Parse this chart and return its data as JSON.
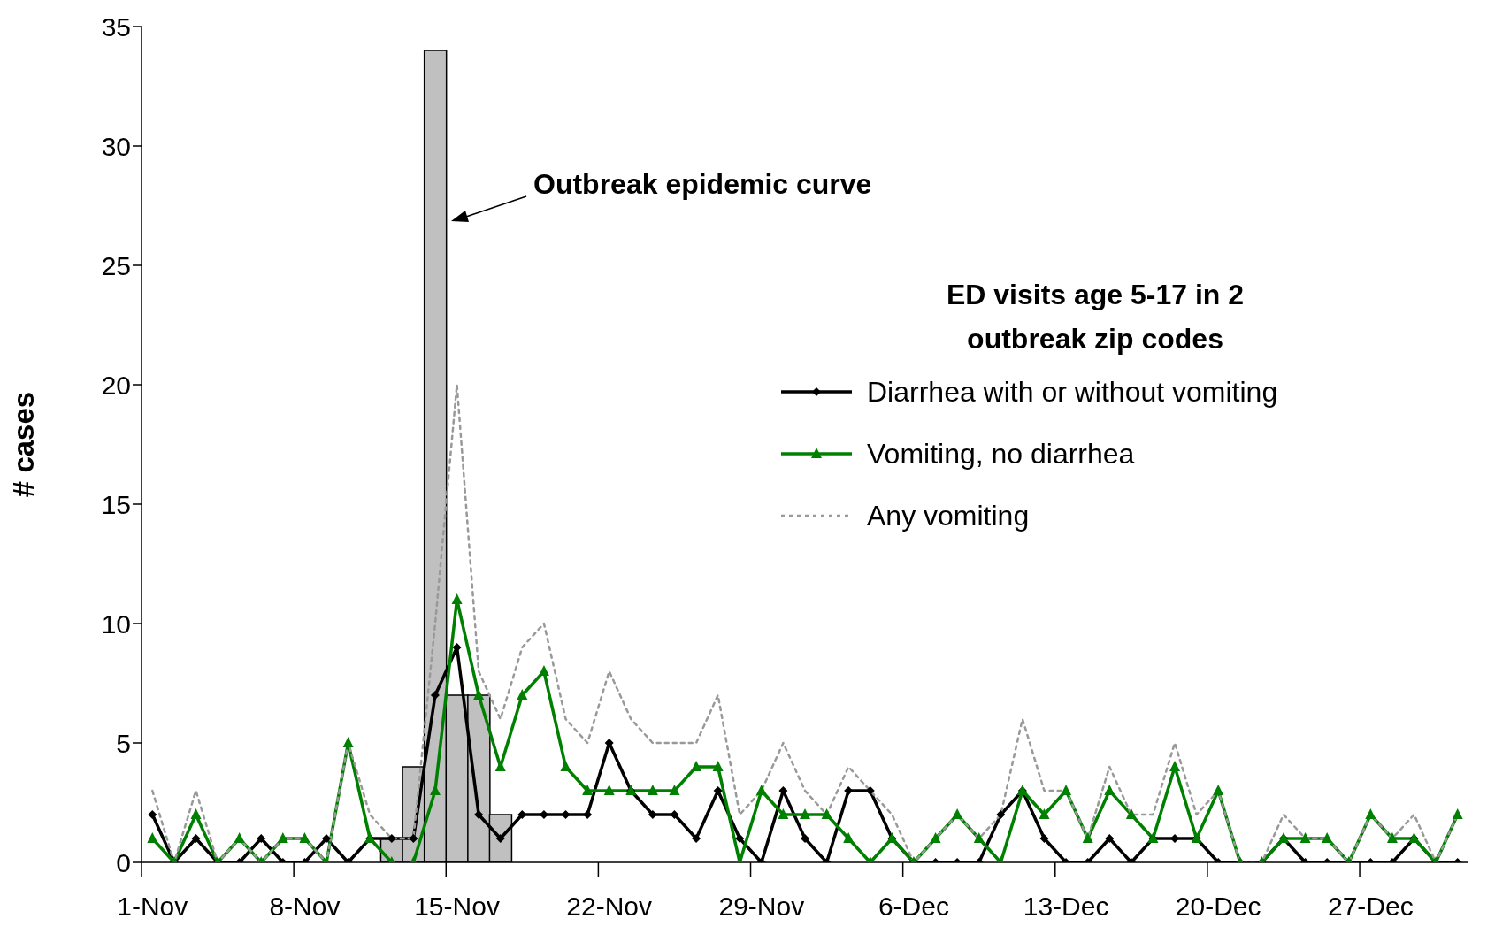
{
  "chart_data": {
    "type": "line",
    "ylabel": "# cases",
    "legend_title": "ED visits age 5-17 in 2 outbreak zip codes",
    "legend": "right",
    "annotations": [
      "Outbreak epidemic curve"
    ],
    "categories": [
      "1-Nov",
      null,
      null,
      null,
      null,
      null,
      null,
      "8-Nov",
      null,
      null,
      null,
      null,
      null,
      null,
      "15-Nov",
      null,
      null,
      null,
      null,
      null,
      null,
      "22-Nov",
      null,
      null,
      null,
      null,
      null,
      null,
      "29-Nov",
      null,
      null,
      null,
      null,
      null,
      null,
      "6-Dec",
      null,
      null,
      null,
      null,
      null,
      null,
      "13-Dec",
      null,
      null,
      null,
      null,
      null,
      null,
      "20-Dec",
      null,
      null,
      null,
      null,
      null,
      null,
      "27-Dec",
      null,
      null,
      null,
      null
    ],
    "ylim": [
      0,
      35
    ],
    "yticks": [
      0,
      5,
      10,
      15,
      20,
      25,
      30,
      35
    ],
    "series": [
      {
        "type": "bar",
        "color": "#c0c0c0",
        "values": [
          null,
          null,
          null,
          null,
          null,
          null,
          null,
          null,
          null,
          null,
          null,
          1,
          4,
          34,
          7,
          7,
          2,
          null,
          null,
          null,
          null,
          null,
          null,
          null,
          null,
          null,
          null,
          null,
          null,
          null,
          null,
          null,
          null,
          null,
          null,
          null,
          null,
          null,
          null,
          null,
          null,
          null,
          null,
          null,
          null,
          null,
          null,
          null,
          null,
          null,
          null,
          null,
          null,
          null,
          null,
          null,
          null,
          null,
          null,
          null,
          null
        ]
      },
      {
        "name": "Diarrhea with or without vomiting",
        "color": "#000000",
        "marker": "diamond",
        "line_style": "solid",
        "values": [
          2,
          0,
          1,
          0,
          0,
          1,
          0,
          0,
          1,
          0,
          1,
          1,
          1,
          7,
          9,
          2,
          1,
          2,
          2,
          2,
          2,
          5,
          3,
          2,
          2,
          1,
          3,
          1,
          0,
          3,
          1,
          0,
          3,
          3,
          1,
          0,
          0,
          0,
          0,
          2,
          3,
          1,
          0,
          0,
          1,
          0,
          1,
          1,
          1,
          0,
          0,
          0,
          1,
          0,
          0,
          0,
          0,
          0,
          1,
          0,
          0
        ]
      },
      {
        "name": "Vomiting, no diarrhea",
        "color": "#008000",
        "marker": "triangle",
        "line_style": "solid",
        "values": [
          1,
          0,
          2,
          0,
          1,
          0,
          1,
          1,
          0,
          5,
          1,
          0,
          0,
          3,
          11,
          7,
          4,
          7,
          8,
          4,
          3,
          3,
          3,
          3,
          3,
          4,
          4,
          0,
          3,
          2,
          2,
          2,
          1,
          0,
          1,
          0,
          1,
          2,
          1,
          0,
          3,
          2,
          3,
          1,
          3,
          2,
          1,
          4,
          1,
          3,
          0,
          0,
          1,
          1,
          1,
          0,
          2,
          1,
          1,
          0,
          2
        ]
      },
      {
        "name": "Any vomiting",
        "color": "#999999",
        "marker": "none",
        "line_style": "dotted",
        "values": [
          3,
          0,
          3,
          0,
          1,
          0,
          1,
          1,
          0,
          5,
          2,
          1,
          1,
          10,
          20,
          8,
          6,
          9,
          10,
          6,
          5,
          8,
          6,
          5,
          5,
          5,
          7,
          2,
          3,
          5,
          3,
          2,
          4,
          3,
          2,
          0,
          1,
          2,
          1,
          2,
          6,
          3,
          3,
          1,
          4,
          2,
          2,
          5,
          2,
          3,
          0,
          0,
          2,
          1,
          1,
          0,
          2,
          1,
          2,
          0,
          2
        ]
      }
    ]
  }
}
